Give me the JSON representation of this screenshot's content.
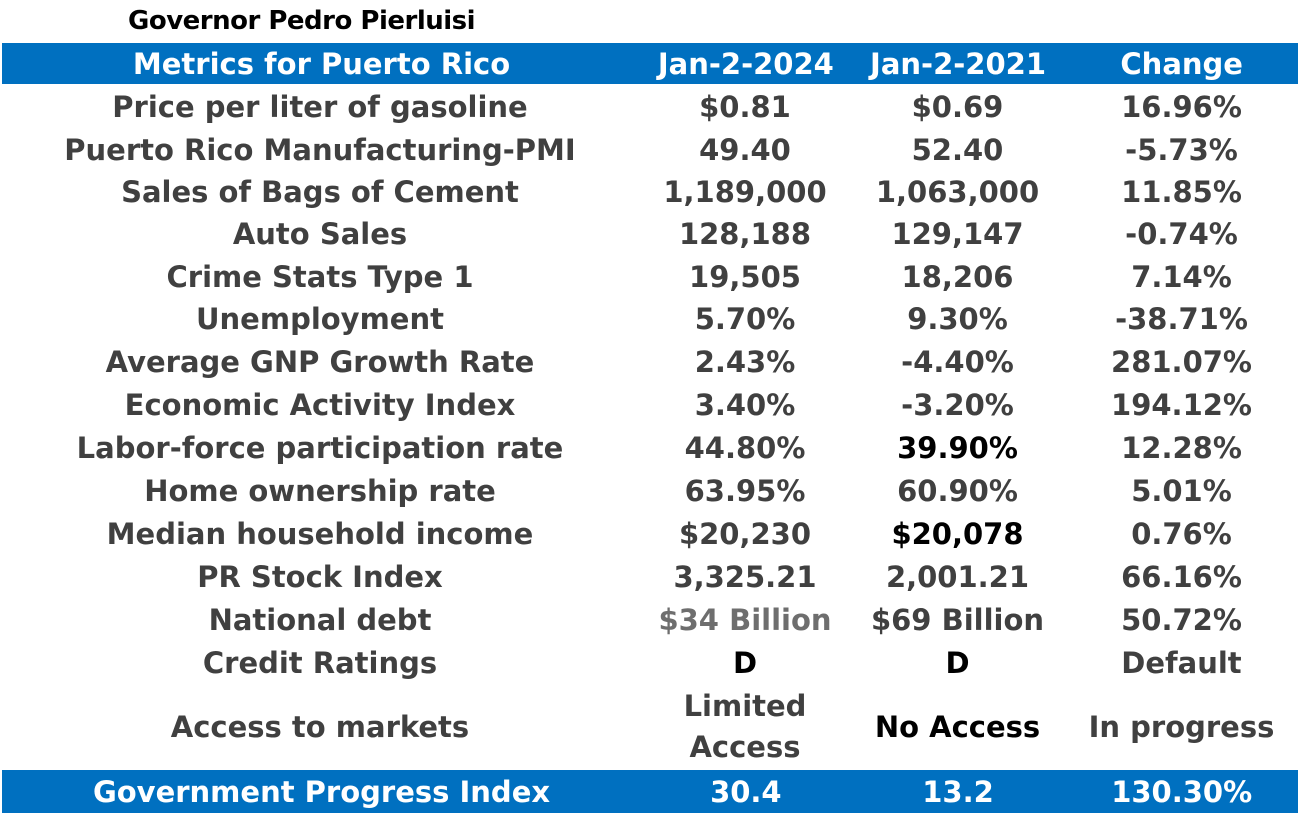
{
  "title": "Governor Pedro Pierluisi",
  "header": {
    "metric": "Metrics for Puerto Rico",
    "col1": "Jan-2-2024",
    "col2": "Jan-2-2021",
    "col3": "Change"
  },
  "rows": [
    {
      "metric": "Price per liter of gasoline",
      "v2024": "$0.81",
      "v2021": "$0.69",
      "change": "16.96%"
    },
    {
      "metric": "Puerto Rico Manufacturing-PMI",
      "v2024": "49.40",
      "v2021": "52.40",
      "change": "-5.73%"
    },
    {
      "metric": "Sales of Bags of Cement",
      "v2024": "1,189,000",
      "v2021": "1,063,000",
      "change": "11.85%"
    },
    {
      "metric": "Auto Sales",
      "v2024": "128,188",
      "v2021": "129,147",
      "change": "-0.74%"
    },
    {
      "metric": "Crime Stats Type 1",
      "v2024": "19,505",
      "v2021": "18,206",
      "change": "7.14%"
    },
    {
      "metric": "Unemployment",
      "v2024": "5.70%",
      "v2021": "9.30%",
      "change": "-38.71%"
    },
    {
      "metric": "Average GNP Growth Rate",
      "v2024": "2.43%",
      "v2021": "-4.40%",
      "change": "281.07%"
    },
    {
      "metric": "Economic Activity Index",
      "v2024": "3.40%",
      "v2021": "-3.20%",
      "change": "194.12%"
    },
    {
      "metric": "Labor-force participation rate",
      "v2024": "44.80%",
      "v2021": "39.90%",
      "change": "12.28%"
    },
    {
      "metric": "Home ownership rate",
      "v2024": "63.95%",
      "v2021": "60.90%",
      "change": "5.01%"
    },
    {
      "metric": "Median household income",
      "v2024": "$20,230",
      "v2021": "$20,078",
      "change": "0.76%"
    },
    {
      "metric": "PR Stock Index",
      "v2024": "3,325.21",
      "v2021": "2,001.21",
      "change": "66.16%"
    },
    {
      "metric": "National debt",
      "v2024": "$34 Billion",
      "v2021": "$69 Billion",
      "change": "50.72%"
    },
    {
      "metric": "Credit Ratings",
      "v2024": "D",
      "v2021": "D",
      "change": "Default"
    },
    {
      "metric": "Access to markets",
      "v2024": "Limited Access",
      "v2021": "No Access",
      "change": "In progress"
    }
  ],
  "footer": {
    "metric": "Government Progress Index",
    "v2024": "30.4",
    "v2021": "13.2",
    "change": "130.30%"
  },
  "colors": {
    "band": "#0070c0",
    "text": "#404040",
    "band_text": "#ffffff"
  }
}
